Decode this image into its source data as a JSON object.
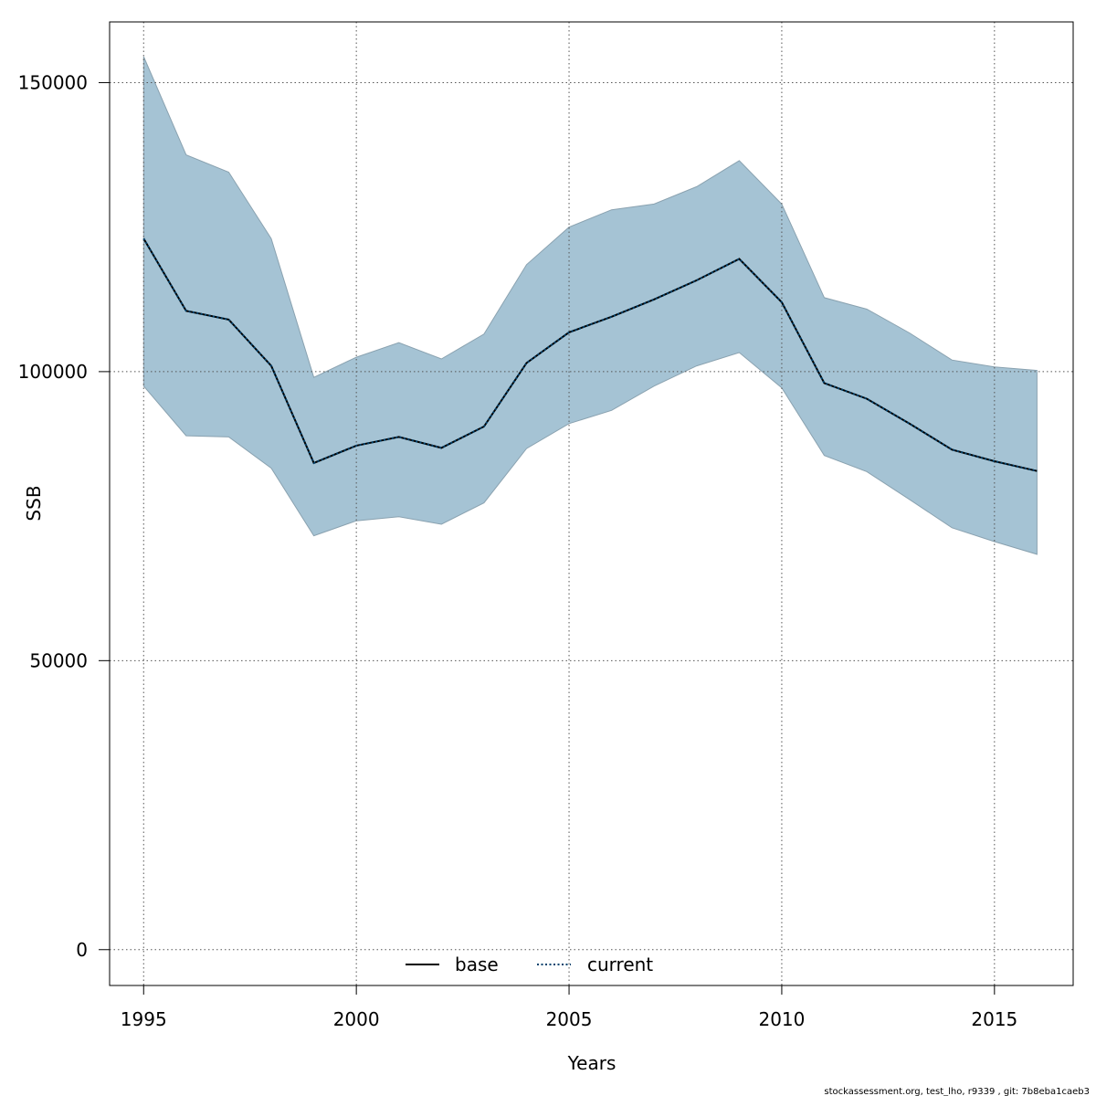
{
  "chart_data": {
    "type": "line",
    "title": "",
    "xlabel": "Years",
    "ylabel": "SSB",
    "xlim": [
      1994.2,
      2016.85
    ],
    "ylim": [
      -6200,
      160500
    ],
    "x_ticks": [
      1995,
      2000,
      2005,
      2010,
      2015
    ],
    "y_ticks": [
      0,
      50000,
      100000,
      150000
    ],
    "grid": true,
    "legend_position": "bottom",
    "x": [
      1995,
      1996,
      1997,
      1998,
      1999,
      2000,
      2001,
      2002,
      2003,
      2004,
      2005,
      2006,
      2007,
      2008,
      2009,
      2010,
      2011,
      2012,
      2013,
      2014,
      2015,
      2016
    ],
    "series": [
      {
        "name": "base",
        "line_style": "solid",
        "color": "#000000",
        "values": [
          123000,
          110500,
          109000,
          101000,
          84200,
          87200,
          88700,
          86800,
          90500,
          101500,
          106800,
          109500,
          112500,
          115800,
          119500,
          112000,
          98000,
          95300,
          91000,
          86500,
          84500,
          82800
        ]
      },
      {
        "name": "current",
        "line_style": "dotted",
        "color": "#00436e",
        "values": [
          123000,
          110500,
          109000,
          101000,
          84200,
          87200,
          88700,
          86800,
          90500,
          101500,
          106800,
          109500,
          112500,
          115800,
          119500,
          112000,
          98000,
          95300,
          91000,
          86500,
          84500,
          82800
        ]
      }
    ],
    "band": {
      "color": "#a5c3d4",
      "upper": [
        154500,
        137500,
        134500,
        123000,
        99000,
        102500,
        105000,
        102200,
        106500,
        118500,
        125000,
        128000,
        129000,
        132000,
        136500,
        129000,
        112800,
        110800,
        106700,
        102000,
        100800,
        100200
      ],
      "lower": [
        97500,
        88900,
        88700,
        83300,
        71600,
        74200,
        74900,
        73600,
        77300,
        86700,
        91000,
        93300,
        97500,
        101000,
        103300,
        97200,
        85500,
        82700,
        77900,
        73000,
        70600,
        68400
      ]
    },
    "footer": "stockassessment.org, test_lho, r9339 , git: 7b8eba1caeb3"
  }
}
